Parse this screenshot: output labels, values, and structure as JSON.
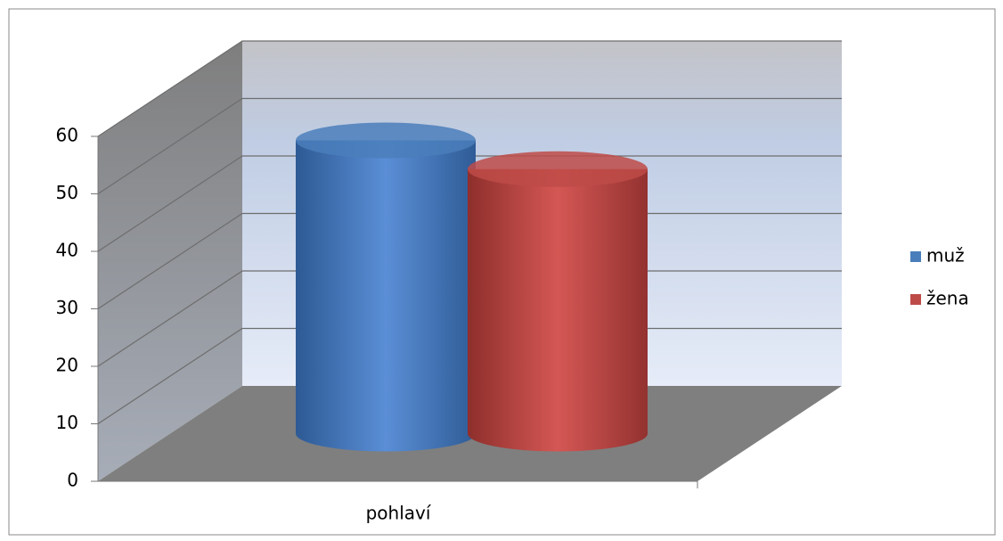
{
  "chart_data": {
    "type": "cylinder",
    "categories": [
      "pohlaví"
    ],
    "series": [
      {
        "name": "muž",
        "color": "#4a7ebb",
        "values": [
          51
        ]
      },
      {
        "name": "žena",
        "color": "#be4b48",
        "values": [
          46
        ]
      }
    ],
    "ylim": [
      0,
      60
    ],
    "yticks": [
      0,
      10,
      20,
      30,
      40,
      50,
      60
    ],
    "grid": true,
    "legend": "right"
  }
}
